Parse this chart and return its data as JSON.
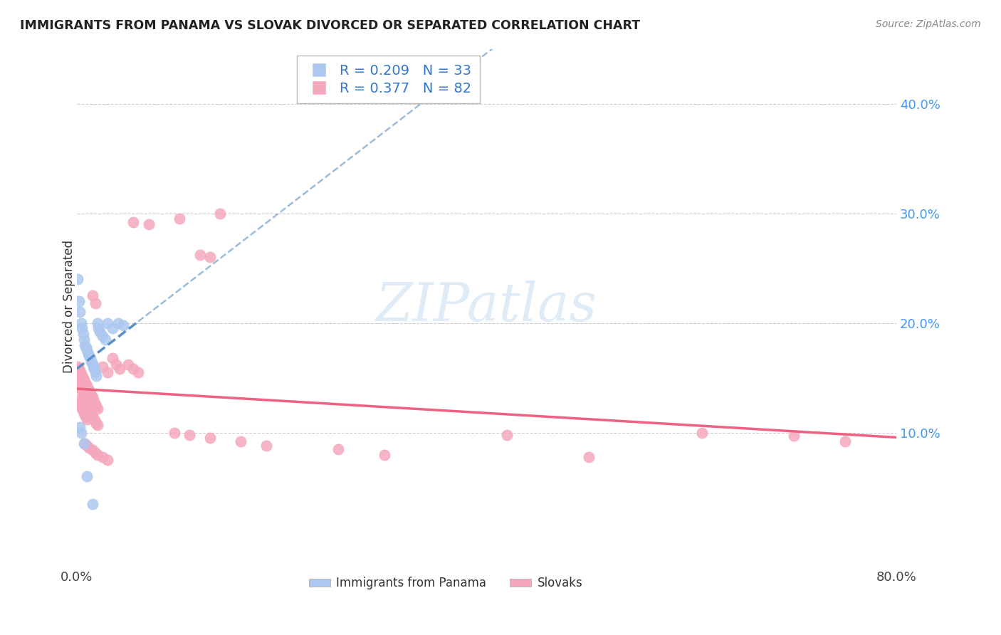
{
  "title": "IMMIGRANTS FROM PANAMA VS SLOVAK DIVORCED OR SEPARATED CORRELATION CHART",
  "source": "Source: ZipAtlas.com",
  "ylabel": "Divorced or Separated",
  "watermark": "ZIPatlas",
  "xlim": [
    0.0,
    0.8
  ],
  "ylim": [
    -0.02,
    0.45
  ],
  "xticks": [
    0.0,
    0.1,
    0.2,
    0.3,
    0.4,
    0.5,
    0.6,
    0.7,
    0.8
  ],
  "yticks": [
    0.1,
    0.2,
    0.3,
    0.4
  ],
  "ytick_labels": [
    "10.0%",
    "20.0%",
    "30.0%",
    "40.0%"
  ],
  "panama_color": "#adc8f0",
  "slovak_color": "#f5a8bc",
  "panama_line_color": "#5b8ec4",
  "slovak_line_color": "#f06080",
  "panama_scatter": [
    [
      0.001,
      0.24
    ],
    [
      0.002,
      0.22
    ],
    [
      0.003,
      0.21
    ],
    [
      0.004,
      0.2
    ],
    [
      0.005,
      0.195
    ],
    [
      0.006,
      0.19
    ],
    [
      0.007,
      0.185
    ],
    [
      0.008,
      0.18
    ],
    [
      0.009,
      0.178
    ],
    [
      0.01,
      0.175
    ],
    [
      0.011,
      0.172
    ],
    [
      0.012,
      0.17
    ],
    [
      0.013,
      0.168
    ],
    [
      0.014,
      0.165
    ],
    [
      0.015,
      0.163
    ],
    [
      0.016,
      0.16
    ],
    [
      0.017,
      0.158
    ],
    [
      0.018,
      0.155
    ],
    [
      0.019,
      0.152
    ],
    [
      0.02,
      0.2
    ],
    [
      0.021,
      0.195
    ],
    [
      0.022,
      0.192
    ],
    [
      0.025,
      0.188
    ],
    [
      0.028,
      0.185
    ],
    [
      0.03,
      0.2
    ],
    [
      0.035,
      0.195
    ],
    [
      0.04,
      0.2
    ],
    [
      0.045,
      0.198
    ],
    [
      0.003,
      0.105
    ],
    [
      0.004,
      0.1
    ],
    [
      0.007,
      0.09
    ],
    [
      0.01,
      0.06
    ],
    [
      0.015,
      0.035
    ]
  ],
  "slovak_scatter": [
    [
      0.001,
      0.148
    ],
    [
      0.002,
      0.145
    ],
    [
      0.003,
      0.143
    ],
    [
      0.004,
      0.14
    ],
    [
      0.005,
      0.138
    ],
    [
      0.006,
      0.135
    ],
    [
      0.007,
      0.133
    ],
    [
      0.008,
      0.13
    ],
    [
      0.009,
      0.128
    ],
    [
      0.01,
      0.125
    ],
    [
      0.011,
      0.123
    ],
    [
      0.012,
      0.12
    ],
    [
      0.013,
      0.118
    ],
    [
      0.014,
      0.116
    ],
    [
      0.015,
      0.115
    ],
    [
      0.016,
      0.113
    ],
    [
      0.017,
      0.112
    ],
    [
      0.018,
      0.11
    ],
    [
      0.019,
      0.108
    ],
    [
      0.02,
      0.107
    ],
    [
      0.001,
      0.16
    ],
    [
      0.002,
      0.158
    ],
    [
      0.003,
      0.156
    ],
    [
      0.004,
      0.154
    ],
    [
      0.005,
      0.152
    ],
    [
      0.006,
      0.15
    ],
    [
      0.007,
      0.148
    ],
    [
      0.008,
      0.146
    ],
    [
      0.009,
      0.144
    ],
    [
      0.01,
      0.142
    ],
    [
      0.011,
      0.14
    ],
    [
      0.012,
      0.138
    ],
    [
      0.013,
      0.136
    ],
    [
      0.014,
      0.134
    ],
    [
      0.015,
      0.132
    ],
    [
      0.016,
      0.13
    ],
    [
      0.017,
      0.128
    ],
    [
      0.018,
      0.126
    ],
    [
      0.019,
      0.124
    ],
    [
      0.02,
      0.122
    ],
    [
      0.001,
      0.13
    ],
    [
      0.002,
      0.128
    ],
    [
      0.003,
      0.126
    ],
    [
      0.004,
      0.124
    ],
    [
      0.005,
      0.122
    ],
    [
      0.006,
      0.12
    ],
    [
      0.007,
      0.118
    ],
    [
      0.008,
      0.116
    ],
    [
      0.009,
      0.114
    ],
    [
      0.01,
      0.112
    ],
    [
      0.015,
      0.225
    ],
    [
      0.018,
      0.218
    ],
    [
      0.025,
      0.16
    ],
    [
      0.03,
      0.155
    ],
    [
      0.035,
      0.168
    ],
    [
      0.038,
      0.162
    ],
    [
      0.042,
      0.158
    ],
    [
      0.05,
      0.162
    ],
    [
      0.055,
      0.158
    ],
    [
      0.06,
      0.155
    ],
    [
      0.008,
      0.09
    ],
    [
      0.01,
      0.088
    ],
    [
      0.012,
      0.086
    ],
    [
      0.015,
      0.084
    ],
    [
      0.018,
      0.082
    ],
    [
      0.02,
      0.08
    ],
    [
      0.025,
      0.078
    ],
    [
      0.03,
      0.075
    ],
    [
      0.055,
      0.292
    ],
    [
      0.07,
      0.29
    ],
    [
      0.1,
      0.295
    ],
    [
      0.12,
      0.262
    ],
    [
      0.13,
      0.26
    ],
    [
      0.14,
      0.3
    ],
    [
      0.095,
      0.1
    ],
    [
      0.11,
      0.098
    ],
    [
      0.13,
      0.095
    ],
    [
      0.16,
      0.092
    ],
    [
      0.185,
      0.088
    ],
    [
      0.255,
      0.085
    ],
    [
      0.3,
      0.08
    ],
    [
      0.42,
      0.098
    ],
    [
      0.5,
      0.078
    ],
    [
      0.61,
      0.1
    ],
    [
      0.7,
      0.097
    ],
    [
      0.75,
      0.092
    ]
  ]
}
